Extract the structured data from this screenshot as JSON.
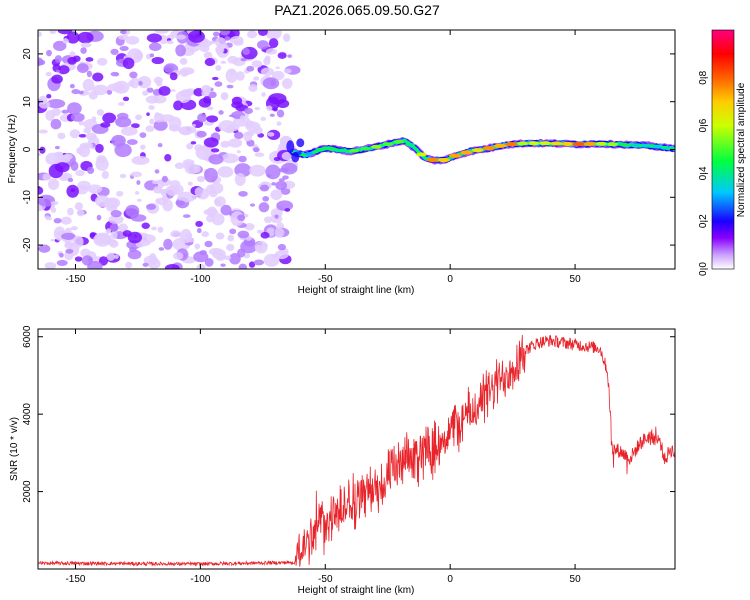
{
  "figure": {
    "title": "PAZ1.2026.065.09.50.G27"
  },
  "chart_data": [
    {
      "type": "heatmap",
      "name": "spectrogram",
      "xlabel": "Height of straight line (km)",
      "ylabel": "Frequency (Hz)",
      "xlim": [
        -165,
        90
      ],
      "ylim": [
        -25,
        25
      ],
      "x_ticks": [
        -150,
        -100,
        -50,
        0,
        50
      ],
      "x_tick_labels": [
        "-150",
        "-100",
        "-50",
        "0",
        "50"
      ],
      "y_ticks": [
        -20,
        -10,
        0,
        10,
        20
      ],
      "y_tick_labels": [
        "-20",
        "-10",
        "0",
        "10",
        "20"
      ],
      "noise_region_x": [
        -165,
        -63
      ],
      "ridge": {
        "x": [
          -63,
          -58,
          -50,
          -40,
          -30,
          -22,
          -18,
          -14,
          -10,
          -6,
          -2,
          2,
          8,
          15,
          22,
          30,
          40,
          50,
          60,
          70,
          80,
          87,
          90
        ],
        "freq": [
          -0.5,
          -1.2,
          0.3,
          -0.4,
          0.5,
          1.5,
          1.8,
          0.2,
          -1.8,
          -2.3,
          -2.2,
          -1.3,
          -0.4,
          0.2,
          1.0,
          1.3,
          1.3,
          1.1,
          1.2,
          1.0,
          0.8,
          0.3,
          0.2
        ],
        "amplitude": [
          0.25,
          0.3,
          0.45,
          0.5,
          0.55,
          0.5,
          0.45,
          0.5,
          0.75,
          0.8,
          0.75,
          0.7,
          0.8,
          0.85,
          0.8,
          0.65,
          0.6,
          0.85,
          0.6,
          0.5,
          0.45,
          0.4,
          0.35
        ]
      },
      "colorbar": {
        "label": "Normalized spectral amplitude",
        "range": [
          0,
          1
        ],
        "ticks": [
          0.0,
          0.2,
          0.4,
          0.6,
          0.8
        ],
        "tick_labels": [
          "0.0",
          "0.2",
          "0.4",
          "0.6",
          "0.8"
        ],
        "colors": [
          "#ffffff",
          "#c9a0ff",
          "#8a00ff",
          "#1a00ff",
          "#00c8ff",
          "#00ff20",
          "#ffff00",
          "#ff7f00",
          "#ff0000",
          "#ff0080"
        ]
      }
    },
    {
      "type": "line",
      "name": "snr",
      "xlabel": "Height of straight line (km)",
      "ylabel": "SNR (10 * v/v)",
      "xlim": [
        -165,
        90
      ],
      "ylim": [
        0,
        6200
      ],
      "x_ticks": [
        -150,
        -100,
        -50,
        0,
        50
      ],
      "x_tick_labels": [
        "-150",
        "-100",
        "-50",
        "0",
        "50"
      ],
      "y_ticks": [
        2000,
        4000,
        6000
      ],
      "y_tick_labels": [
        "2000",
        "4000",
        "6000"
      ],
      "color": "#e8232a",
      "series": [
        {
          "name": "SNR",
          "x": [
            -165,
            -100,
            -62,
            -59,
            -55,
            -50,
            -45,
            -40,
            -35,
            -30,
            -25,
            -20,
            -15,
            -10,
            -5,
            0,
            5,
            10,
            15,
            20,
            25,
            30,
            35,
            40,
            45,
            50,
            55,
            60,
            63,
            65,
            68,
            72,
            76,
            80,
            84,
            86,
            88,
            90
          ],
          "y": [
            150,
            130,
            170,
            500,
            1000,
            1250,
            1450,
            1650,
            1900,
            2100,
            2350,
            2650,
            2900,
            3050,
            3250,
            3550,
            3850,
            4150,
            4500,
            4850,
            5250,
            5650,
            5850,
            5900,
            5850,
            5800,
            5750,
            5700,
            5100,
            3100,
            3050,
            2850,
            3250,
            3450,
            3300,
            2800,
            3100,
            3000
          ]
        }
      ]
    }
  ]
}
